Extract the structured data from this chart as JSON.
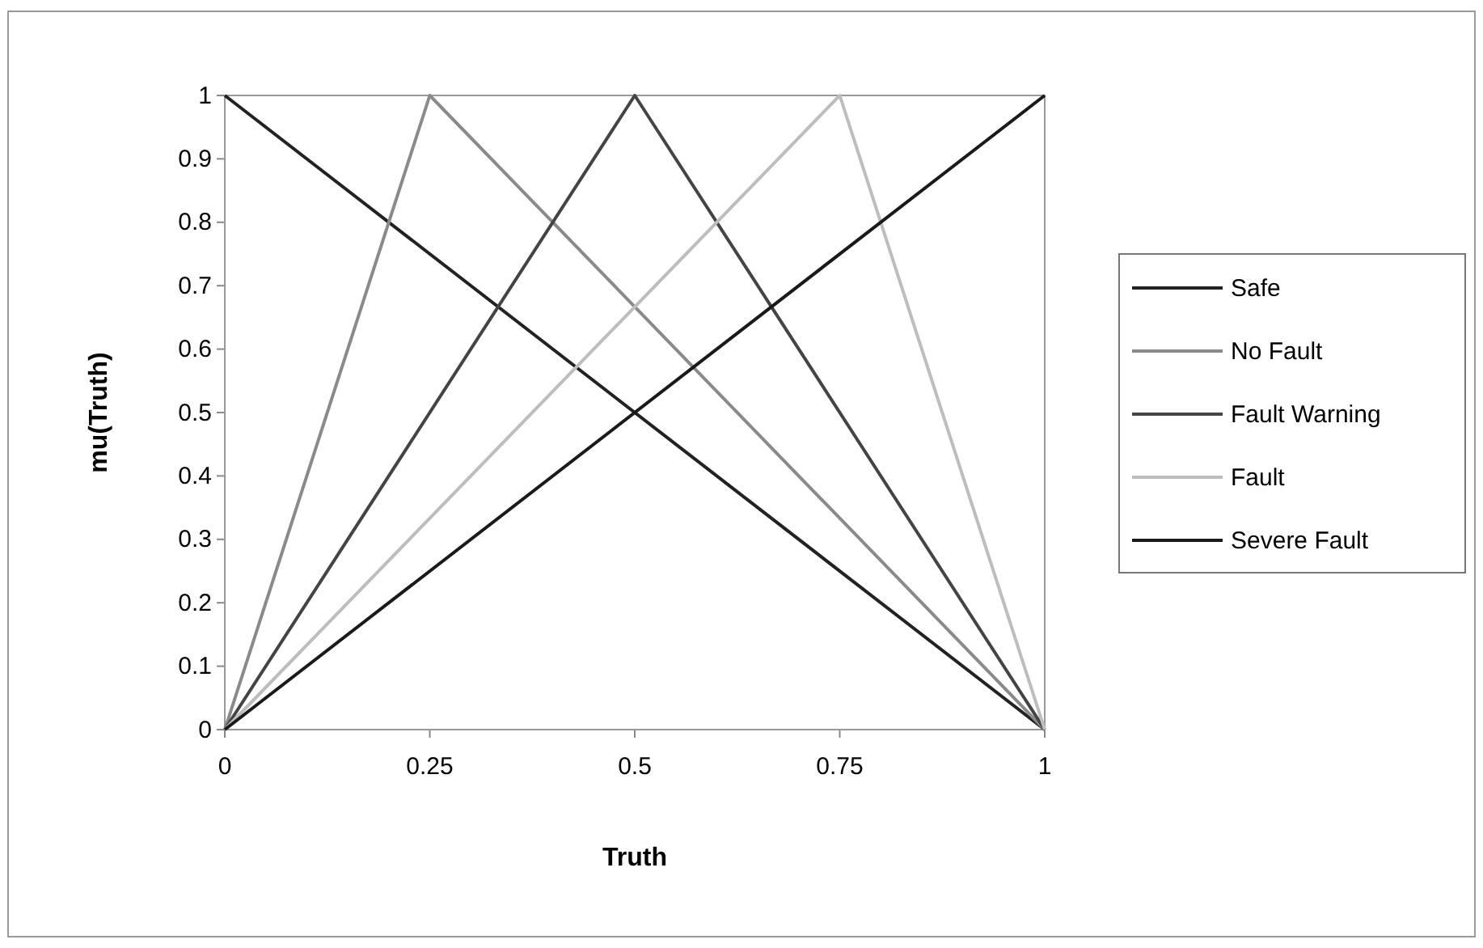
{
  "chart_data": {
    "type": "line",
    "xlabel": "Truth",
    "ylabel": "mu(Truth)",
    "xlim": [
      0,
      1
    ],
    "xticks": [
      0,
      0.25,
      0.5,
      0.75,
      1
    ],
    "ylim": [
      0,
      1
    ],
    "yticks": [
      0,
      0.1,
      0.2,
      0.3,
      0.4,
      0.5,
      0.6,
      0.7,
      0.8,
      0.9,
      1
    ],
    "grid": false,
    "legend": "right",
    "marker": "none",
    "line_style": "solid",
    "series": [
      {
        "name": "Safe",
        "color": "#222222",
        "x": [
          0,
          1
        ],
        "values": [
          1,
          0
        ]
      },
      {
        "name": "No Fault",
        "color": "#8a8a8a",
        "x": [
          0,
          0.25,
          1
        ],
        "values": [
          0,
          1,
          0
        ]
      },
      {
        "name": "Fault Warning",
        "color": "#444444",
        "x": [
          0,
          0.5,
          1
        ],
        "values": [
          0,
          1,
          0
        ]
      },
      {
        "name": "Fault",
        "color": "#bdbdbd",
        "x": [
          0,
          0.75,
          1
        ],
        "values": [
          0,
          1,
          0
        ]
      },
      {
        "name": "Severe Fault",
        "color": "#1a1a1a",
        "x": [
          0,
          1
        ],
        "values": [
          0,
          1
        ]
      }
    ]
  }
}
